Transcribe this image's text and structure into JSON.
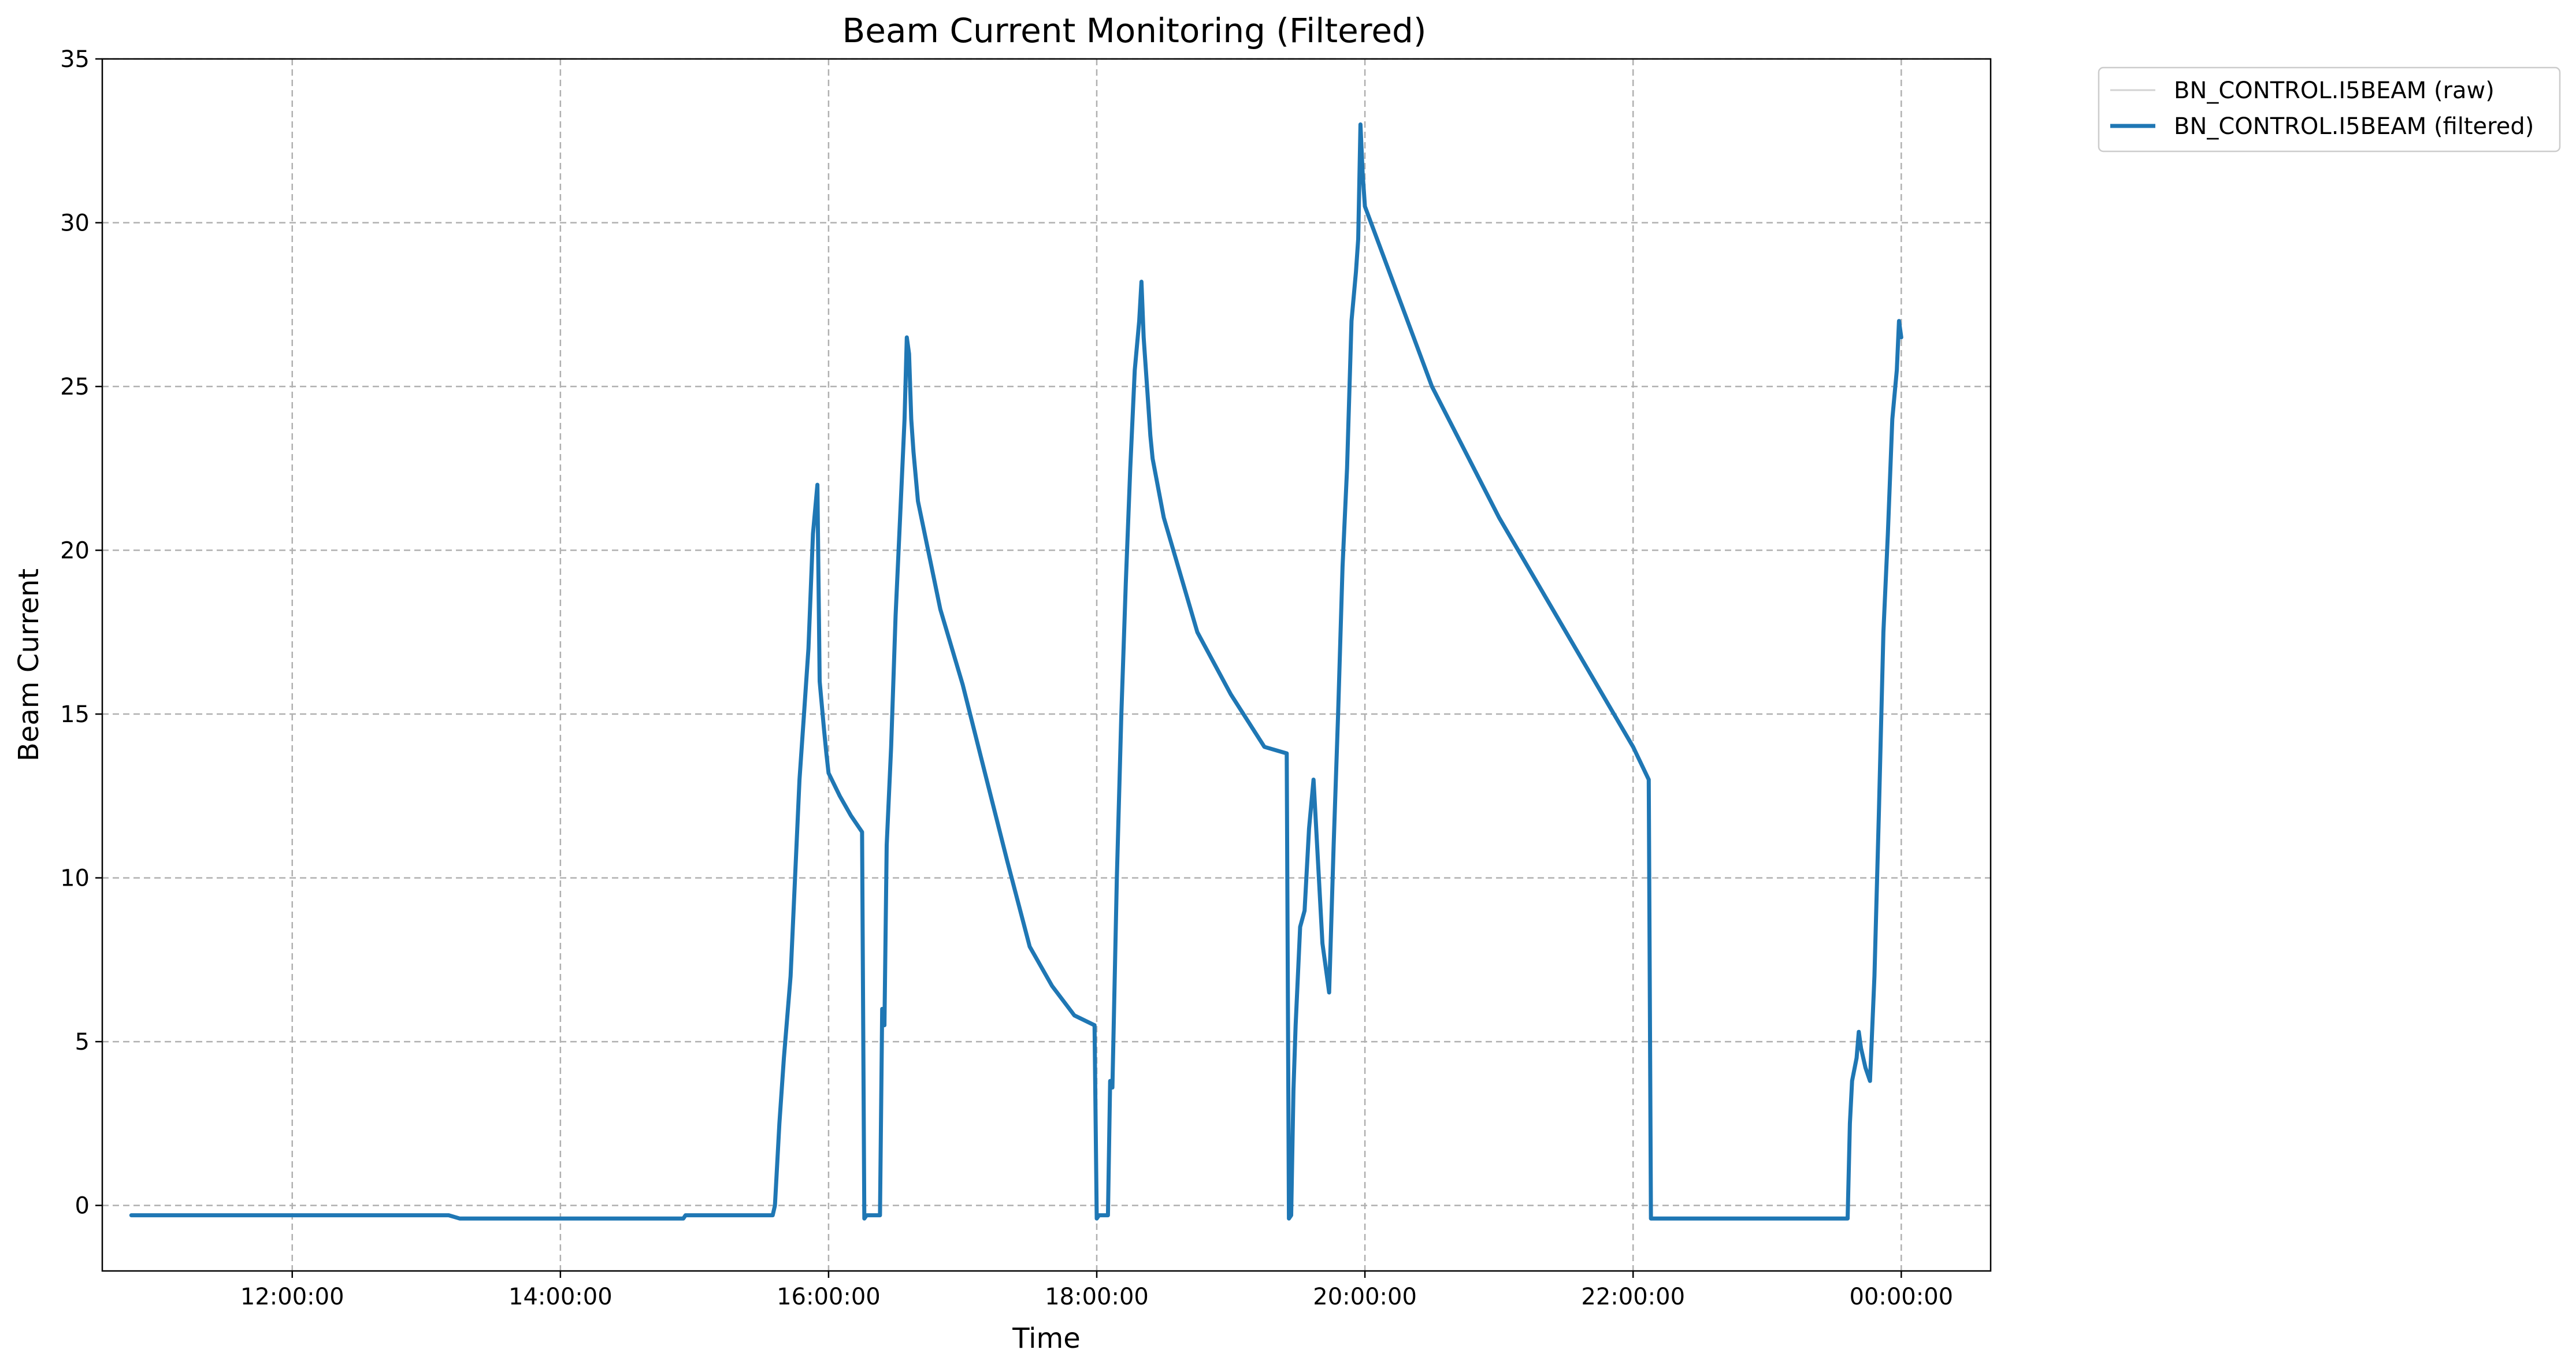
{
  "chart_data": {
    "type": "line",
    "title": "Beam Current Monitoring (Filtered)",
    "xlabel": "Time",
    "ylabel": "Beam Current",
    "x_ticks": [
      "12:00:00",
      "14:00:00",
      "16:00:00",
      "18:00:00",
      "20:00:00",
      "22:00:00",
      "00:00:00"
    ],
    "y_ticks": [
      "0",
      "5",
      "10",
      "15",
      "20",
      "25",
      "30",
      "35"
    ],
    "xlim": [
      "10:35:00",
      "00:40:00"
    ],
    "ylim": [
      -2,
      35
    ],
    "grid": true,
    "legend_position": "outside-top-right",
    "series": [
      {
        "name": "BN_CONTROL.I5BEAM (raw)",
        "color": "#d3d3d3",
        "style": "thin",
        "x": [],
        "values": []
      },
      {
        "name": "BN_CONTROL.I5BEAM (filtered)",
        "color": "#1f77b4",
        "style": "thick",
        "x": [
          "10:48:00",
          "12:00:00",
          "13:10:00",
          "13:15:00",
          "14:55:00",
          "14:56:00",
          "15:35:00",
          "15:36:00",
          "15:38:00",
          "15:40:00",
          "15:43:00",
          "15:45:00",
          "15:47:00",
          "15:49:00",
          "15:51:00",
          "15:53:00",
          "15:55:00",
          "15:56:00",
          "15:58:00",
          "15:59:00",
          "16:00:00",
          "16:05:00",
          "16:10:00",
          "16:15:00",
          "16:16:00",
          "16:17:00",
          "16:23:00",
          "16:24:00",
          "16:25:00",
          "16:26:00",
          "16:28:00",
          "16:30:00",
          "16:32:00",
          "16:34:00",
          "16:35:00",
          "16:36:00",
          "16:37:00",
          "16:38:00",
          "16:40:00",
          "16:50:00",
          "17:00:00",
          "17:10:00",
          "17:20:00",
          "17:30:00",
          "17:40:00",
          "17:50:00",
          "17:59:00",
          "18:00:00",
          "18:01:00",
          "18:05:00",
          "18:06:00",
          "18:07:00",
          "18:09:00",
          "18:11:00",
          "18:13:00",
          "18:15:00",
          "18:17:00",
          "18:19:00",
          "18:20:00",
          "18:21:00",
          "18:22:00",
          "18:23:00",
          "18:24:00",
          "18:25:00",
          "18:30:00",
          "18:45:00",
          "19:00:00",
          "19:15:00",
          "19:25:00",
          "19:26:00",
          "19:27:00",
          "19:28:00",
          "19:29:00",
          "19:31:00",
          "19:33:00",
          "19:35:00",
          "19:37:00",
          "19:39:00",
          "19:41:00",
          "19:42:00",
          "19:43:00",
          "19:44:00",
          "19:46:00",
          "19:48:00",
          "19:50:00",
          "19:52:00",
          "19:54:00",
          "19:56:00",
          "19:57:00",
          "19:58:00",
          "19:59:00",
          "20:00:00",
          "20:30:00",
          "21:00:00",
          "21:30:00",
          "22:00:00",
          "22:07:00",
          "22:08:00",
          "22:09:00",
          "22:30:00",
          "23:00:00",
          "23:30:00",
          "23:36:00",
          "23:37:00",
          "23:38:00",
          "23:40:00",
          "23:41:00",
          "23:42:00",
          "23:44:00",
          "23:46:00",
          "23:48:00",
          "23:50:00",
          "23:52:00",
          "23:54:00",
          "23:56:00",
          "23:58:00",
          "23:59:00",
          "00:00:00"
        ],
        "values": [
          -0.3,
          -0.3,
          -0.3,
          -0.4,
          -0.4,
          -0.3,
          -0.3,
          0.0,
          2.5,
          4.5,
          7.0,
          10.0,
          13.0,
          15.0,
          17.0,
          20.5,
          22.0,
          16.0,
          14.5,
          13.8,
          13.2,
          12.5,
          11.9,
          11.4,
          -0.4,
          -0.3,
          -0.3,
          6.0,
          5.5,
          11.0,
          14.0,
          18.0,
          21.0,
          24.0,
          26.5,
          26.0,
          24.0,
          23.0,
          21.5,
          18.2,
          15.9,
          13.2,
          10.5,
          7.9,
          6.7,
          5.8,
          5.5,
          -0.4,
          -0.3,
          -0.3,
          3.8,
          3.6,
          10.0,
          15.0,
          19.0,
          22.5,
          25.5,
          27.0,
          28.2,
          26.5,
          25.5,
          24.5,
          23.5,
          22.8,
          21.0,
          17.5,
          15.6,
          14.0,
          13.8,
          -0.4,
          -0.3,
          3.5,
          5.5,
          8.5,
          9.0,
          11.5,
          13.0,
          10.5,
          8.0,
          7.5,
          7.0,
          6.5,
          11.0,
          15.0,
          19.5,
          22.5,
          27.0,
          28.5,
          29.5,
          33.0,
          31.5,
          30.5,
          25.0,
          21.0,
          17.5,
          14.0,
          13.0,
          -0.4,
          -0.4,
          -0.4,
          -0.4,
          -0.4,
          -0.4,
          2.5,
          3.8,
          4.5,
          5.3,
          4.8,
          4.2,
          3.8,
          7.0,
          12.0,
          17.5,
          20.5,
          24.0,
          25.5,
          27.0,
          26.5
        ]
      }
    ]
  }
}
